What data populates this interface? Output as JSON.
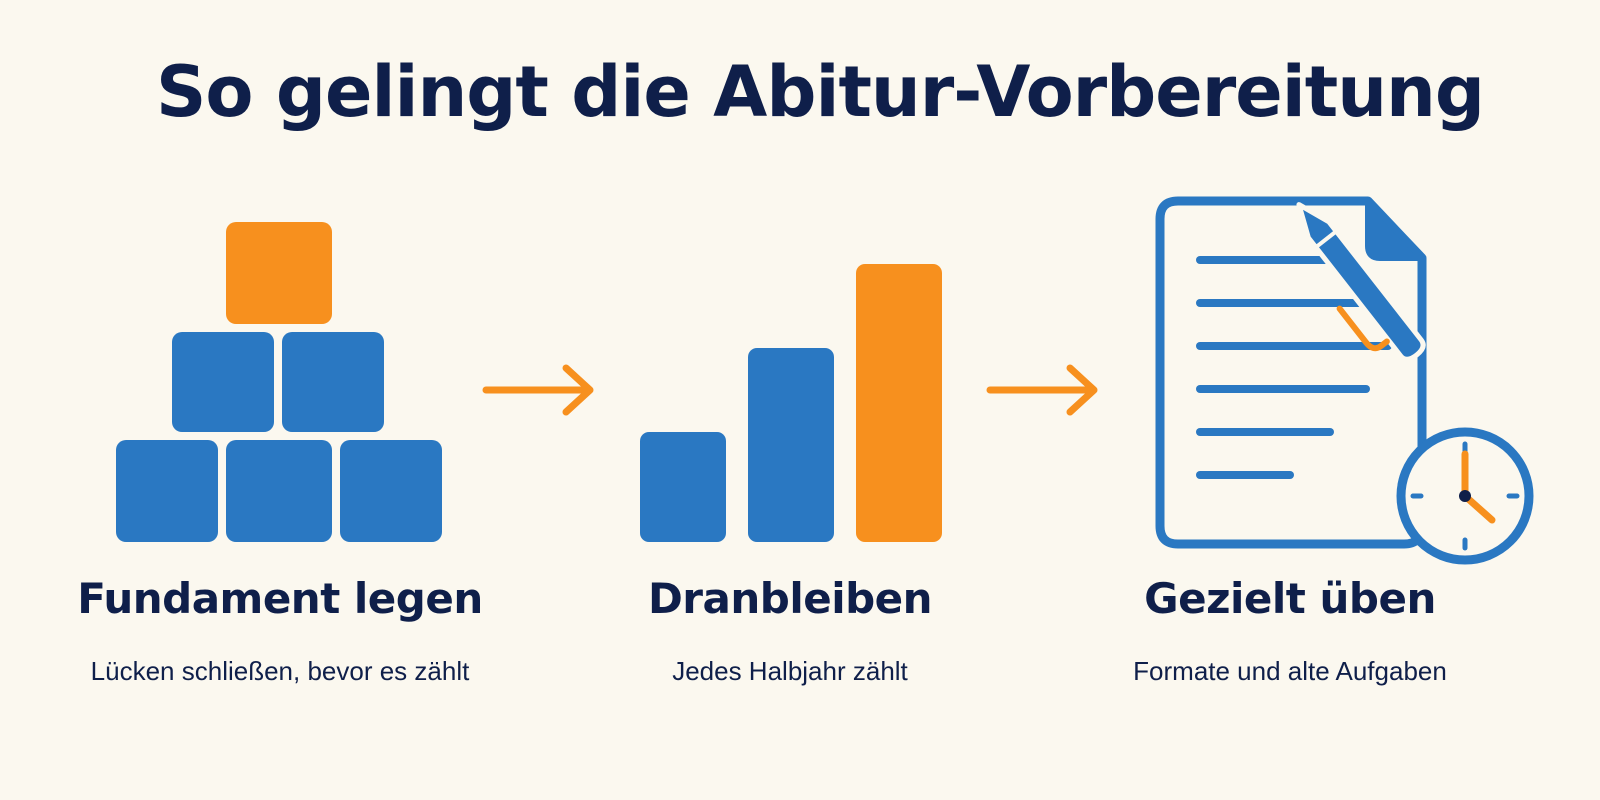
{
  "title": "So gelingt die Abitur-Vorbereitung",
  "colors": {
    "blue": "#2a78c2",
    "orange": "#f7901e",
    "navy": "#0f1f4a",
    "background": "#fbf8ef"
  },
  "steps": [
    {
      "title": "Fundament legen",
      "subtitle": "Lücken schließen, bevor es zählt",
      "icon": "block-pyramid-icon"
    },
    {
      "title": "Dranbleiben",
      "subtitle": "Jedes Halbjahr zählt",
      "icon": "rising-bars-icon"
    },
    {
      "title": "Gezielt üben",
      "subtitle": "Formate und alte Aufgaben",
      "icon": "document-pen-clock-icon"
    }
  ],
  "connectors": [
    "arrow-right-icon",
    "arrow-right-icon"
  ]
}
